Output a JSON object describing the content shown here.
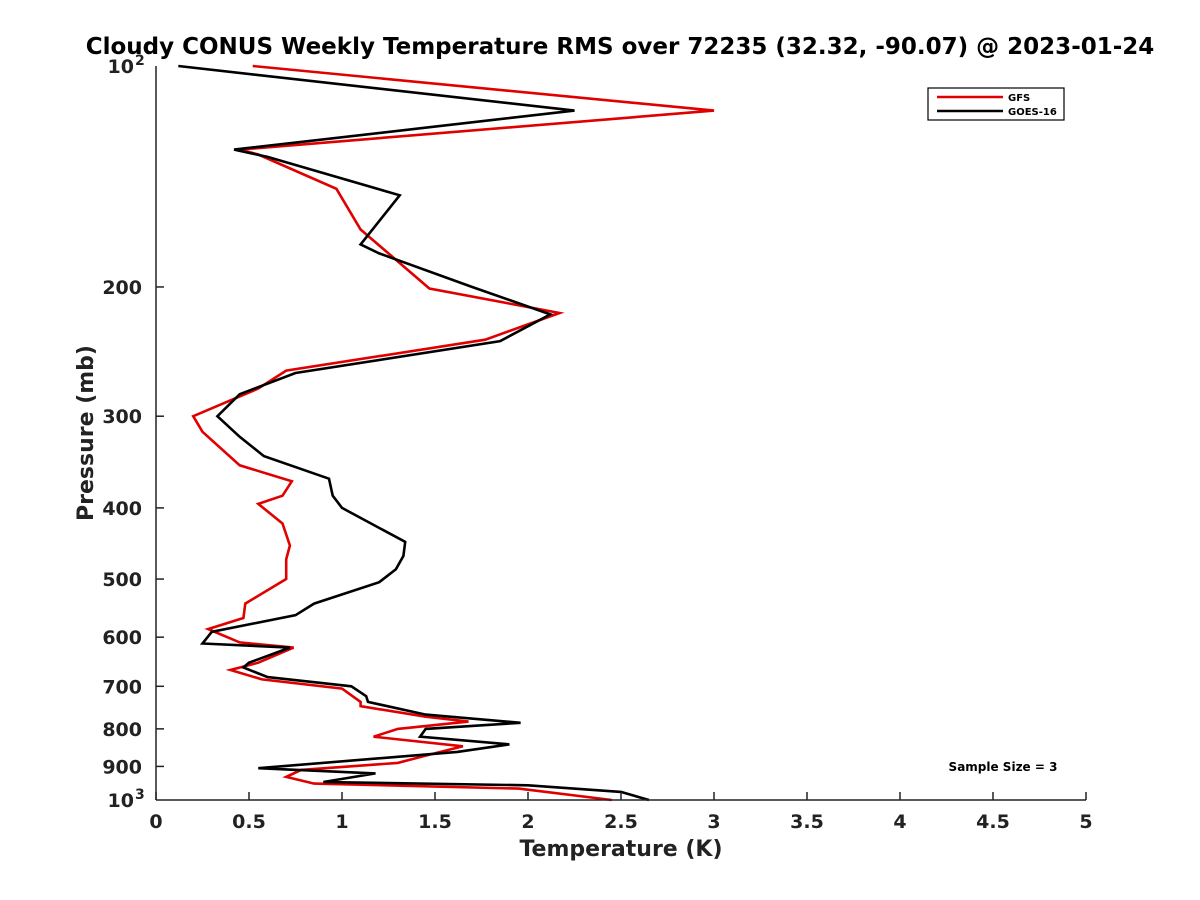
{
  "chart_data": {
    "type": "line",
    "title": "Cloudy CONUS Weekly Temperature RMS over 72235 (32.32, -90.07) @ 2023-01-24",
    "xlabel": "Temperature (K)",
    "ylabel": "Pressure (mb)",
    "xlim": [
      0,
      5
    ],
    "ylim": [
      100,
      1000
    ],
    "y_scale": "log",
    "y_reversed": true,
    "grid": false,
    "x_ticks": [
      0,
      0.5,
      1,
      1.5,
      2,
      2.5,
      3,
      3.5,
      4,
      4.5,
      5
    ],
    "x_tick_labels": [
      "0",
      "0.5",
      "1",
      "1.5",
      "2",
      "2.5",
      "3",
      "3.5",
      "4",
      "4.5",
      "5"
    ],
    "y_ticks": [
      200,
      300,
      400,
      500,
      600,
      700,
      800,
      900
    ],
    "y_tick_labels": [
      "200",
      "300",
      "400",
      "500",
      "600",
      "700",
      "800",
      "900"
    ],
    "y_end_labels": {
      "base": "10",
      "top_exp": "2",
      "bottom_exp": "3"
    },
    "legend": {
      "placement": "top-right"
    },
    "annotation": "Sample Size = 3",
    "series": [
      {
        "name": "GFS",
        "color": "#e00000",
        "points": [
          [
            0.52,
            100
          ],
          [
            3.0,
            115
          ],
          [
            0.45,
            130
          ],
          [
            0.55,
            132
          ],
          [
            0.97,
            147
          ],
          [
            1.1,
            167
          ],
          [
            1.47,
            201
          ],
          [
            2.17,
            217
          ],
          [
            1.77,
            236
          ],
          [
            0.7,
            260
          ],
          [
            0.55,
            275
          ],
          [
            0.2,
            300
          ],
          [
            0.25,
            315
          ],
          [
            0.45,
            350
          ],
          [
            0.73,
            368
          ],
          [
            0.68,
            385
          ],
          [
            0.55,
            395
          ],
          [
            0.68,
            420
          ],
          [
            0.72,
            450
          ],
          [
            0.7,
            470
          ],
          [
            0.7,
            500
          ],
          [
            0.48,
            540
          ],
          [
            0.47,
            565
          ],
          [
            0.28,
            585
          ],
          [
            0.45,
            610
          ],
          [
            0.74,
            620
          ],
          [
            0.55,
            650
          ],
          [
            0.4,
            665
          ],
          [
            0.57,
            685
          ],
          [
            1.0,
            705
          ],
          [
            1.1,
            735
          ],
          [
            1.1,
            745
          ],
          [
            1.45,
            770
          ],
          [
            1.68,
            782
          ],
          [
            1.3,
            800
          ],
          [
            1.17,
            820
          ],
          [
            1.65,
            845
          ],
          [
            1.45,
            870
          ],
          [
            1.3,
            890
          ],
          [
            0.78,
            910
          ],
          [
            0.7,
            930
          ],
          [
            0.85,
            950
          ],
          [
            1.95,
            965
          ],
          [
            2.45,
            1000
          ]
        ]
      },
      {
        "name": "GOES-16",
        "color": "#000000",
        "points": [
          [
            0.12,
            100
          ],
          [
            2.25,
            115
          ],
          [
            0.42,
            130
          ],
          [
            0.6,
            133
          ],
          [
            1.31,
            150
          ],
          [
            1.1,
            175
          ],
          [
            1.2,
            180
          ],
          [
            1.7,
            200
          ],
          [
            2.12,
            218
          ],
          [
            1.85,
            237
          ],
          [
            0.75,
            262
          ],
          [
            0.45,
            280
          ],
          [
            0.33,
            300
          ],
          [
            0.45,
            320
          ],
          [
            0.58,
            340
          ],
          [
            0.93,
            365
          ],
          [
            0.95,
            385
          ],
          [
            1.0,
            400
          ],
          [
            1.34,
            445
          ],
          [
            1.33,
            465
          ],
          [
            1.29,
            485
          ],
          [
            1.2,
            505
          ],
          [
            0.85,
            540
          ],
          [
            0.75,
            560
          ],
          [
            0.3,
            590
          ],
          [
            0.25,
            612
          ],
          [
            0.72,
            620
          ],
          [
            0.5,
            650
          ],
          [
            0.47,
            660
          ],
          [
            0.6,
            680
          ],
          [
            1.05,
            700
          ],
          [
            1.13,
            722
          ],
          [
            1.14,
            735
          ],
          [
            1.45,
            765
          ],
          [
            1.96,
            785
          ],
          [
            1.45,
            800
          ],
          [
            1.42,
            820
          ],
          [
            1.9,
            840
          ],
          [
            1.62,
            860
          ],
          [
            0.55,
            905
          ],
          [
            1.18,
            920
          ],
          [
            0.9,
            945
          ],
          [
            2.0,
            955
          ],
          [
            2.5,
            975
          ],
          [
            2.65,
            1000
          ]
        ]
      }
    ]
  }
}
